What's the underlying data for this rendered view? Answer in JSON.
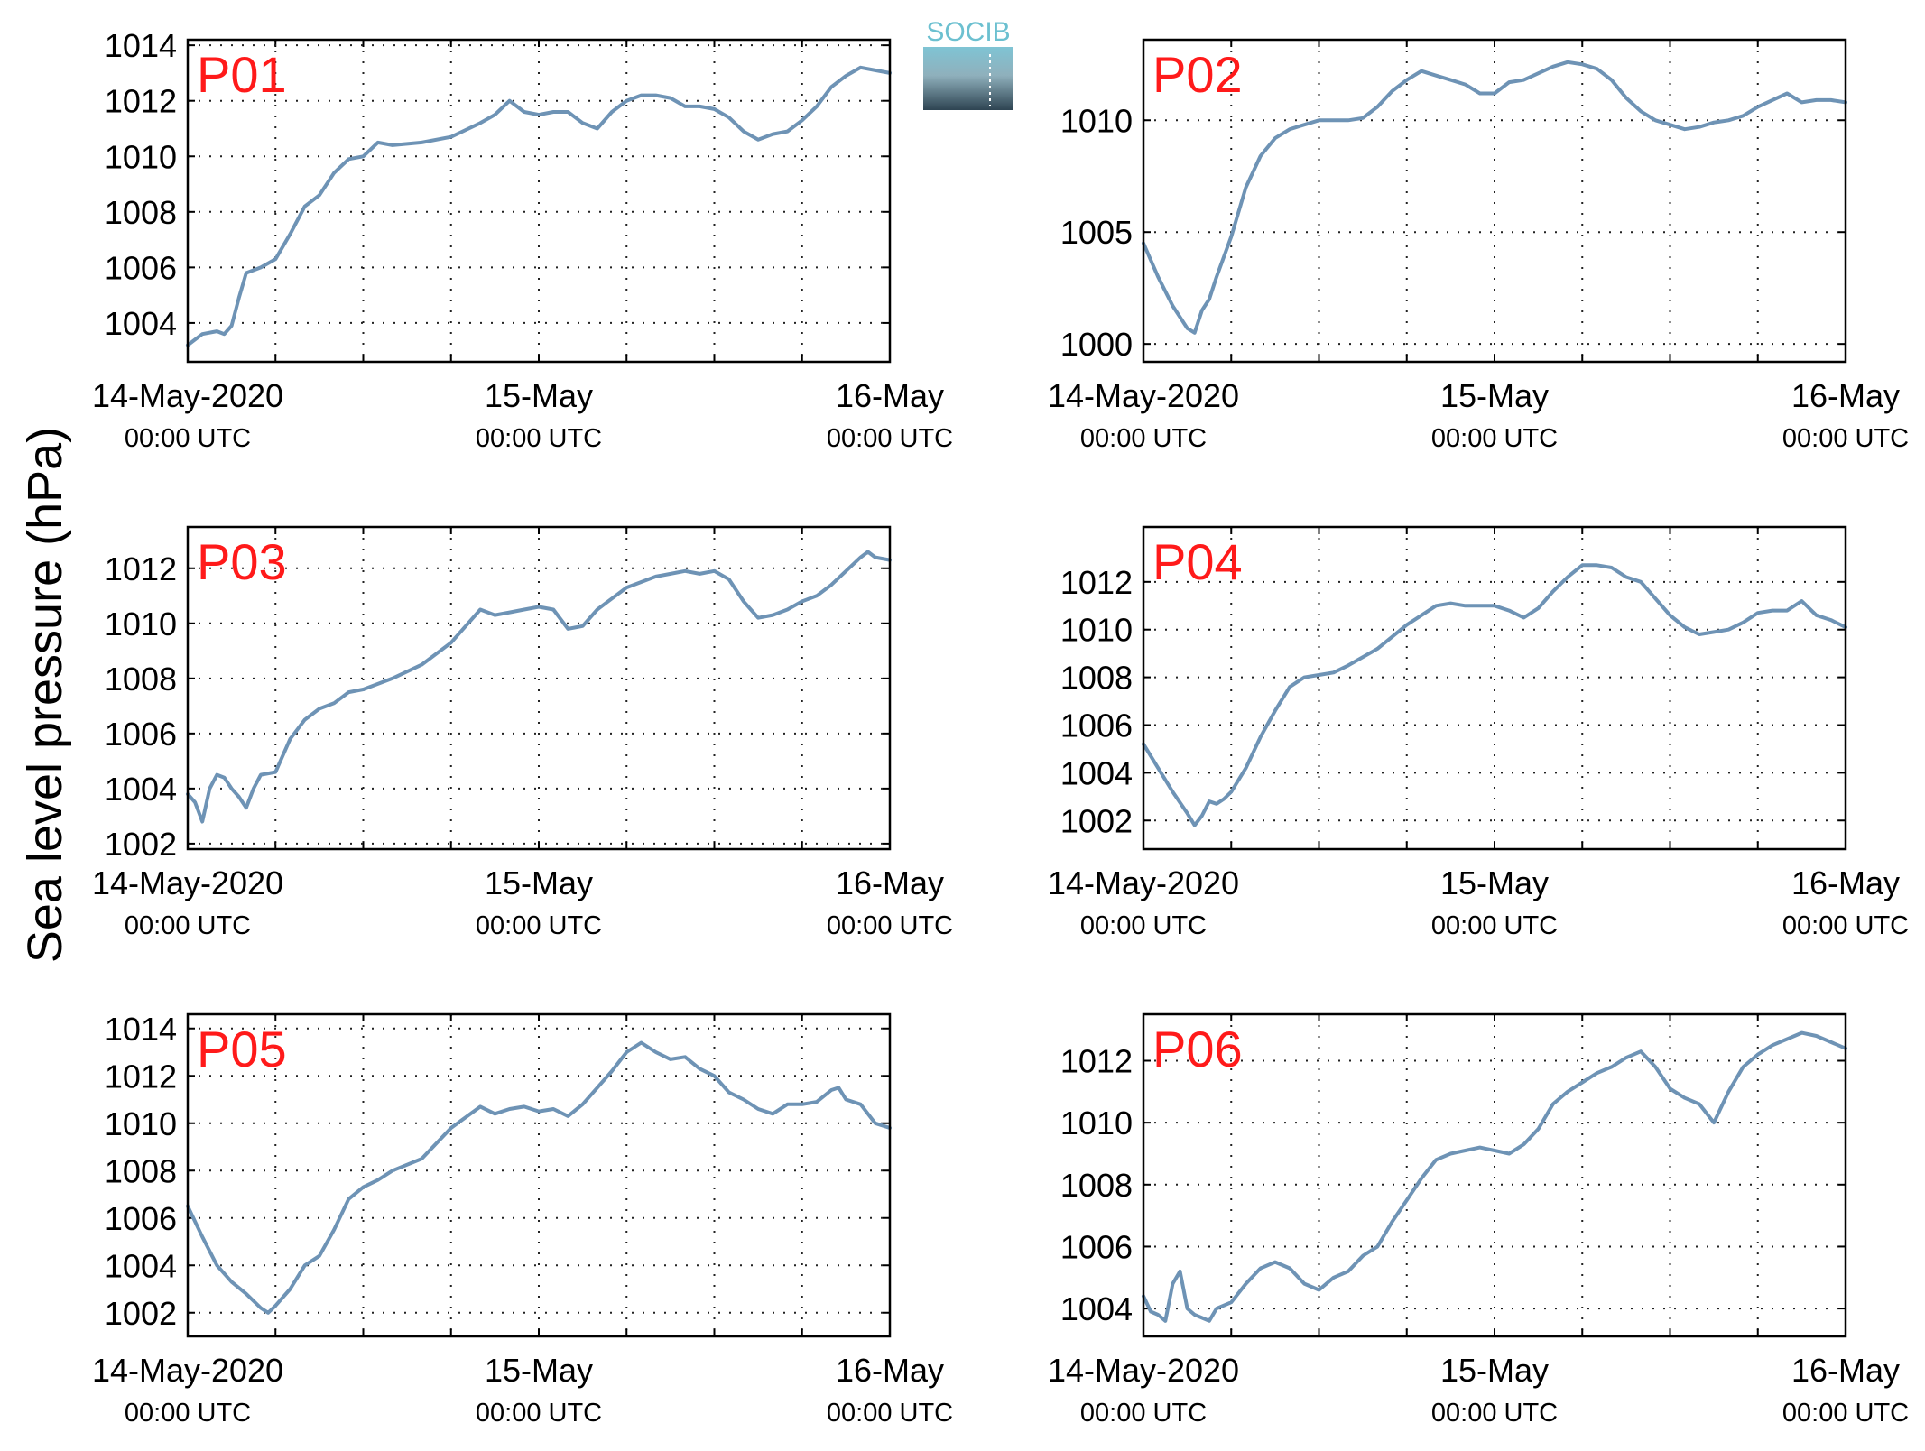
{
  "figure": {
    "ylabel": "Sea level pressure (hPa)",
    "logo_text": "SOCIB",
    "line_color": "#6e93b5",
    "label_color": "#ff1a1a",
    "grid": "dotted"
  },
  "chart_data": [
    {
      "type": "line",
      "title": "P01",
      "x_range_hours": [
        0,
        48
      ],
      "xticks": [
        {
          "main": "14-May-2020",
          "sub": "00:00 UTC"
        },
        {
          "main": "15-May",
          "sub": "00:00 UTC"
        },
        {
          "main": "16-May",
          "sub": "00:00 UTC"
        }
      ],
      "ylim": [
        1002.6,
        1014.2
      ],
      "yticks": [
        1004,
        1006,
        1008,
        1010,
        1012,
        1014
      ],
      "series": [
        {
          "x": [
            0,
            1,
            2,
            2.5,
            3,
            3.5,
            4,
            5,
            6,
            7,
            8,
            9,
            10,
            11,
            12,
            13,
            14,
            16,
            18,
            20,
            21,
            22,
            23,
            24,
            25,
            26,
            27,
            28,
            29,
            30,
            31,
            32,
            33,
            34,
            35,
            36,
            37,
            38,
            39,
            40,
            41,
            42,
            43,
            44,
            45,
            46,
            47,
            48
          ],
          "y": [
            1003.2,
            1003.6,
            1003.7,
            1003.6,
            1003.9,
            1004.9,
            1005.8,
            1006.0,
            1006.3,
            1007.2,
            1008.2,
            1008.6,
            1009.4,
            1009.9,
            1010.0,
            1010.5,
            1010.4,
            1010.5,
            1010.7,
            1011.2,
            1011.5,
            1012.0,
            1011.6,
            1011.5,
            1011.6,
            1011.6,
            1011.2,
            1011.0,
            1011.6,
            1012.0,
            1012.2,
            1012.2,
            1012.1,
            1011.8,
            1011.8,
            1011.7,
            1011.4,
            1010.9,
            1010.6,
            1010.8,
            1010.9,
            1011.3,
            1011.8,
            1012.5,
            1012.9,
            1013.2,
            1013.1,
            1013.0
          ]
        }
      ]
    },
    {
      "type": "line",
      "title": "P02",
      "x_range_hours": [
        0,
        48
      ],
      "xticks": [
        {
          "main": "14-May-2020",
          "sub": "00:00 UTC"
        },
        {
          "main": "15-May",
          "sub": "00:00 UTC"
        },
        {
          "main": "16-May",
          "sub": "00:00 UTC"
        }
      ],
      "ylim": [
        999.2,
        1013.6
      ],
      "yticks": [
        1000,
        1005,
        1010
      ],
      "series": [
        {
          "x": [
            0,
            1,
            2,
            3,
            3.5,
            4,
            4.5,
            5,
            6,
            7,
            8,
            9,
            10,
            11,
            12,
            13,
            14,
            15,
            16,
            17,
            18,
            19,
            20,
            21,
            22,
            23,
            24,
            25,
            26,
            27,
            28,
            29,
            30,
            31,
            32,
            33,
            34,
            35,
            36,
            37,
            38,
            39,
            40,
            41,
            42,
            43,
            44,
            45,
            46,
            47,
            48
          ],
          "y": [
            1004.5,
            1003.0,
            1001.7,
            1000.7,
            1000.5,
            1001.5,
            1002.0,
            1003.0,
            1004.8,
            1007.0,
            1008.4,
            1009.2,
            1009.6,
            1009.8,
            1010.0,
            1010.0,
            1010.0,
            1010.1,
            1010.6,
            1011.3,
            1011.8,
            1012.2,
            1012.0,
            1011.8,
            1011.6,
            1011.2,
            1011.2,
            1011.7,
            1011.8,
            1012.1,
            1012.4,
            1012.6,
            1012.5,
            1012.3,
            1011.8,
            1011.0,
            1010.4,
            1010.0,
            1009.8,
            1009.6,
            1009.7,
            1009.9,
            1010.0,
            1010.2,
            1010.6,
            1010.9,
            1011.2,
            1010.8,
            1010.9,
            1010.9,
            1010.8
          ]
        }
      ]
    },
    {
      "type": "line",
      "title": "P03",
      "x_range_hours": [
        0,
        48
      ],
      "xticks": [
        {
          "main": "14-May-2020",
          "sub": "00:00 UTC"
        },
        {
          "main": "15-May",
          "sub": "00:00 UTC"
        },
        {
          "main": "16-May",
          "sub": "00:00 UTC"
        }
      ],
      "ylim": [
        1001.8,
        1013.5
      ],
      "yticks": [
        1002,
        1004,
        1006,
        1008,
        1010,
        1012
      ],
      "series": [
        {
          "x": [
            0,
            0.5,
            1,
            1.5,
            2,
            2.5,
            3,
            3.5,
            4,
            4.5,
            5,
            6,
            7,
            8,
            9,
            10,
            11,
            12,
            13,
            14,
            16,
            18,
            20,
            21,
            22,
            23,
            24,
            25,
            26,
            27,
            28,
            29,
            30,
            31,
            32,
            33,
            34,
            35,
            36,
            37,
            38,
            39,
            40,
            41,
            42,
            43,
            44,
            45,
            46,
            46.5,
            47,
            48
          ],
          "y": [
            1003.8,
            1003.5,
            1002.8,
            1004.0,
            1004.5,
            1004.4,
            1004.0,
            1003.7,
            1003.3,
            1004.0,
            1004.5,
            1004.6,
            1005.8,
            1006.5,
            1006.9,
            1007.1,
            1007.5,
            1007.6,
            1007.8,
            1008.0,
            1008.5,
            1009.3,
            1010.5,
            1010.3,
            1010.4,
            1010.5,
            1010.6,
            1010.5,
            1009.8,
            1009.9,
            1010.5,
            1010.9,
            1011.3,
            1011.5,
            1011.7,
            1011.8,
            1011.9,
            1011.8,
            1011.9,
            1011.6,
            1010.8,
            1010.2,
            1010.3,
            1010.5,
            1010.8,
            1011.0,
            1011.4,
            1011.9,
            1012.4,
            1012.6,
            1012.4,
            1012.3
          ]
        }
      ]
    },
    {
      "type": "line",
      "title": "P04",
      "x_range_hours": [
        0,
        48
      ],
      "xticks": [
        {
          "main": "14-May-2020",
          "sub": "00:00 UTC"
        },
        {
          "main": "15-May",
          "sub": "00:00 UTC"
        },
        {
          "main": "16-May",
          "sub": "00:00 UTC"
        }
      ],
      "ylim": [
        1000.8,
        1014.3
      ],
      "yticks": [
        1002,
        1004,
        1006,
        1008,
        1010,
        1012
      ],
      "series": [
        {
          "x": [
            0,
            1,
            2,
            3,
            3.5,
            4,
            4.5,
            5,
            5.5,
            6,
            7,
            8,
            9,
            10,
            11,
            12,
            13,
            14,
            16,
            18,
            20,
            21,
            22,
            23,
            24,
            25,
            26,
            27,
            28,
            29,
            30,
            31,
            32,
            33,
            34,
            35,
            36,
            37,
            38,
            39,
            40,
            41,
            42,
            43,
            44,
            45,
            46,
            47,
            48
          ],
          "y": [
            1005.2,
            1004.2,
            1003.2,
            1002.3,
            1001.8,
            1002.2,
            1002.8,
            1002.7,
            1002.9,
            1003.2,
            1004.2,
            1005.5,
            1006.6,
            1007.6,
            1008.0,
            1008.1,
            1008.2,
            1008.5,
            1009.2,
            1010.2,
            1011.0,
            1011.1,
            1011.0,
            1011.0,
            1011.0,
            1010.8,
            1010.5,
            1010.9,
            1011.6,
            1012.2,
            1012.7,
            1012.7,
            1012.6,
            1012.2,
            1012.0,
            1011.3,
            1010.6,
            1010.1,
            1009.8,
            1009.9,
            1010.0,
            1010.3,
            1010.7,
            1010.8,
            1010.8,
            1011.2,
            1010.6,
            1010.4,
            1010.1
          ]
        }
      ]
    },
    {
      "type": "line",
      "title": "P05",
      "x_range_hours": [
        0,
        48
      ],
      "xticks": [
        {
          "main": "14-May-2020",
          "sub": "00:00 UTC"
        },
        {
          "main": "15-May",
          "sub": "00:00 UTC"
        },
        {
          "main": "16-May",
          "sub": "00:00 UTC"
        }
      ],
      "ylim": [
        1001.0,
        1014.6
      ],
      "yticks": [
        1002,
        1004,
        1006,
        1008,
        1010,
        1012,
        1014
      ],
      "series": [
        {
          "x": [
            0,
            1,
            2,
            3,
            4,
            5,
            5.5,
            6,
            7,
            8,
            9,
            10,
            11,
            12,
            13,
            14,
            16,
            18,
            20,
            21,
            22,
            23,
            24,
            25,
            26,
            27,
            28,
            29,
            30,
            31,
            32,
            33,
            34,
            35,
            36,
            37,
            38,
            39,
            40,
            41,
            42,
            43,
            44,
            44.5,
            45,
            46,
            47,
            48
          ],
          "y": [
            1006.5,
            1005.2,
            1004.0,
            1003.3,
            1002.8,
            1002.2,
            1002.0,
            1002.3,
            1003.0,
            1004.0,
            1004.4,
            1005.5,
            1006.8,
            1007.3,
            1007.6,
            1008.0,
            1008.5,
            1009.8,
            1010.7,
            1010.4,
            1010.6,
            1010.7,
            1010.5,
            1010.6,
            1010.3,
            1010.8,
            1011.5,
            1012.2,
            1013.0,
            1013.4,
            1013.0,
            1012.7,
            1012.8,
            1012.3,
            1012.0,
            1011.3,
            1011.0,
            1010.6,
            1010.4,
            1010.8,
            1010.8,
            1010.9,
            1011.4,
            1011.5,
            1011.0,
            1010.8,
            1010.0,
            1009.8
          ]
        }
      ]
    },
    {
      "type": "line",
      "title": "P06",
      "x_range_hours": [
        0,
        48
      ],
      "xticks": [
        {
          "main": "14-May-2020",
          "sub": "00:00 UTC"
        },
        {
          "main": "15-May",
          "sub": "00:00 UTC"
        },
        {
          "main": "16-May",
          "sub": "00:00 UTC"
        }
      ],
      "ylim": [
        1003.1,
        1013.5
      ],
      "yticks": [
        1004,
        1006,
        1008,
        1010,
        1012
      ],
      "series": [
        {
          "x": [
            0,
            0.5,
            1,
            1.5,
            2,
            2.5,
            3,
            3.5,
            4,
            4.5,
            5,
            6,
            7,
            8,
            9,
            10,
            11,
            12,
            13,
            14,
            15,
            16,
            17,
            18,
            19,
            20,
            21,
            22,
            23,
            24,
            25,
            26,
            27,
            28,
            29,
            30,
            31,
            32,
            33,
            34,
            35,
            36,
            37,
            38,
            39,
            40,
            41,
            42,
            43,
            44,
            45,
            46,
            47,
            48
          ],
          "y": [
            1004.4,
            1003.9,
            1003.8,
            1003.6,
            1004.8,
            1005.2,
            1004.0,
            1003.8,
            1003.7,
            1003.6,
            1004.0,
            1004.2,
            1004.8,
            1005.3,
            1005.5,
            1005.3,
            1004.8,
            1004.6,
            1005.0,
            1005.2,
            1005.7,
            1006.0,
            1006.8,
            1007.5,
            1008.2,
            1008.8,
            1009.0,
            1009.1,
            1009.2,
            1009.1,
            1009.0,
            1009.3,
            1009.8,
            1010.6,
            1011.0,
            1011.3,
            1011.6,
            1011.8,
            1012.1,
            1012.3,
            1011.8,
            1011.1,
            1010.8,
            1010.6,
            1010.0,
            1011.0,
            1011.8,
            1012.2,
            1012.5,
            1012.7,
            1012.9,
            1012.8,
            1012.6,
            1012.4
          ]
        }
      ]
    }
  ]
}
